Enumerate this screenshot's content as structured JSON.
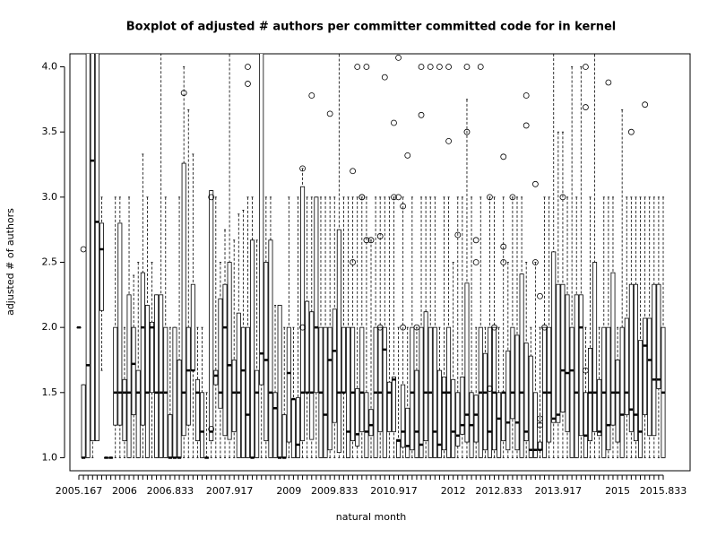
{
  "chart_data": {
    "type": "boxplot",
    "title": "Boxplot of adjusted # authors per committer committed code for in kernel",
    "xlabel": "natural month",
    "ylabel": "adjusted # of authors",
    "ylim": [
      0.9,
      4.1
    ],
    "yticks": [
      {
        "value": 1,
        "label": "1.0"
      },
      {
        "value": 1.5,
        "label": "1.5"
      },
      {
        "value": 2,
        "label": "2.0"
      },
      {
        "value": 2.5,
        "label": "2.5"
      },
      {
        "value": 3,
        "label": "3.0"
      },
      {
        "value": 3.5,
        "label": "3.5"
      },
      {
        "value": 4,
        "label": "4.0"
      }
    ],
    "color": "#000000",
    "categories": [
      "2005.167",
      null,
      null,
      null,
      null,
      null,
      null,
      null,
      null,
      null,
      "2006",
      null,
      null,
      null,
      null,
      null,
      null,
      null,
      null,
      null,
      "2006.833",
      null,
      null,
      null,
      null,
      null,
      null,
      null,
      null,
      null,
      null,
      null,
      null,
      "2007.917",
      null,
      null,
      null,
      null,
      null,
      null,
      null,
      null,
      null,
      null,
      null,
      null,
      "2009",
      null,
      null,
      null,
      null,
      null,
      null,
      null,
      null,
      null,
      "2009.833",
      null,
      null,
      null,
      null,
      null,
      null,
      null,
      null,
      null,
      null,
      null,
      null,
      "2010.917",
      null,
      null,
      null,
      null,
      null,
      null,
      null,
      null,
      null,
      null,
      null,
      null,
      "2012",
      null,
      null,
      null,
      null,
      null,
      null,
      null,
      null,
      null,
      "2012.833",
      null,
      null,
      null,
      null,
      null,
      null,
      null,
      null,
      null,
      null,
      null,
      null,
      "2013.917",
      null,
      null,
      null,
      null,
      null,
      null,
      null,
      null,
      null,
      null,
      null,
      null,
      "2015",
      null,
      null,
      null,
      null,
      null,
      null,
      null,
      null,
      null,
      "2015.833"
    ],
    "boxes": [
      [
        2,
        2,
        2,
        2,
        2
      ],
      [
        1,
        1,
        1,
        1.56,
        1.56
      ],
      [
        1,
        1,
        1.71,
        4.5,
        5
      ],
      [
        1,
        1.13,
        3.28,
        5,
        6
      ],
      [
        1.13,
        1.13,
        2.81,
        5,
        6
      ],
      [
        1.67,
        2.13,
        2.6,
        2.8,
        3
      ],
      [
        1,
        1,
        1,
        1,
        1
      ],
      [
        1,
        1,
        1,
        1,
        1
      ],
      [
        1,
        1.25,
        1.5,
        2,
        3
      ],
      [
        1,
        1.25,
        1.5,
        2.8,
        3
      ],
      [
        1,
        1.13,
        1.5,
        1.6,
        2
      ],
      [
        1,
        1,
        1.5,
        2.25,
        3
      ],
      [
        1,
        1.33,
        1.72,
        2,
        2.4
      ],
      [
        1,
        1,
        1.5,
        1.67,
        2.5
      ],
      [
        1,
        1.25,
        2,
        2.42,
        3.33
      ],
      [
        1,
        1,
        1.5,
        2.17,
        3
      ],
      [
        1,
        1.5,
        2,
        2.04,
        2.5
      ],
      [
        1,
        1,
        1.5,
        2.25,
        2.25
      ],
      [
        1,
        1,
        1.5,
        2.25,
        5
      ],
      [
        1,
        1,
        1.5,
        2,
        3
      ],
      [
        1,
        1,
        1,
        1.33,
        2
      ],
      [
        1,
        1,
        1,
        2,
        2
      ],
      [
        1,
        1,
        1,
        1.75,
        3
      ],
      [
        1,
        1.17,
        1.5,
        3.26,
        4
      ],
      [
        1,
        1.25,
        1.67,
        2,
        3.67
      ],
      [
        1,
        1.67,
        1.67,
        2.33,
        3.33
      ],
      [
        1,
        1.13,
        1.5,
        1.6,
        2
      ],
      [
        1,
        1,
        1.2,
        1.5,
        2
      ],
      [
        1,
        1,
        1,
        1,
        1.5
      ],
      [
        1,
        1.13,
        1.2,
        3.05,
        3.05
      ],
      [
        1,
        1.56,
        1.63,
        1.67,
        3
      ],
      [
        1,
        1.38,
        1.5,
        2.22,
        2.5
      ],
      [
        1,
        1.17,
        2,
        2.33,
        2.75
      ],
      [
        1,
        1.14,
        1.71,
        2.5,
        4.2
      ],
      [
        1,
        1.2,
        1.5,
        1.75,
        2.67
      ],
      [
        1,
        1,
        1.5,
        2.11,
        2.87
      ],
      [
        1,
        1,
        1.67,
        2,
        2.9
      ],
      [
        1,
        1,
        1.33,
        2,
        3
      ],
      [
        1,
        1,
        1,
        2.67,
        3
      ],
      [
        1,
        1,
        1.5,
        1.67,
        2.67
      ],
      [
        1,
        1.56,
        1.8,
        5,
        5
      ],
      [
        1,
        1.13,
        1.75,
        2.5,
        3
      ],
      [
        1,
        1,
        1.5,
        2.67,
        3
      ],
      [
        1,
        1,
        1.38,
        1.5,
        2.17
      ],
      [
        1,
        1,
        1,
        2.17,
        2.17
      ],
      [
        1,
        1,
        1,
        1.33,
        2
      ],
      [
        1,
        1.12,
        1.65,
        2,
        3
      ],
      [
        1,
        1,
        1.45,
        1.45,
        2
      ],
      [
        1,
        1,
        1.1,
        1.46,
        3
      ],
      [
        1,
        1.13,
        1.5,
        3.08,
        3.22
      ],
      [
        1,
        1.5,
        1.5,
        2.2,
        3
      ],
      [
        1,
        1.14,
        1.5,
        2.12,
        3
      ],
      [
        1,
        1.5,
        2,
        3,
        3
      ],
      [
        1,
        1,
        1.5,
        2,
        3
      ],
      [
        1,
        1,
        1.33,
        2,
        3
      ],
      [
        1,
        1.06,
        1.75,
        2,
        3
      ],
      [
        1,
        1.27,
        1.82,
        2.14,
        3
      ],
      [
        1,
        1.04,
        1.5,
        2.75,
        4.2
      ],
      [
        1,
        1.5,
        1.5,
        2,
        3
      ],
      [
        1,
        1,
        1.2,
        2,
        3
      ],
      [
        1,
        1.13,
        1.5,
        2,
        3
      ],
      [
        1,
        1.09,
        1.18,
        1.53,
        3
      ],
      [
        1,
        1.2,
        1.5,
        2,
        3
      ],
      [
        1,
        1,
        1.2,
        1.5,
        3
      ],
      [
        1,
        1.17,
        1.25,
        1.37,
        2.67
      ],
      [
        1,
        1,
        1.5,
        2,
        3
      ],
      [
        1,
        1.2,
        1.5,
        2,
        3
      ],
      [
        1,
        1,
        1.83,
        2,
        3
      ],
      [
        1,
        1.2,
        1.5,
        1.58,
        3
      ],
      [
        1,
        1.2,
        1.6,
        1.62,
        3
      ],
      [
        1,
        1,
        1.13,
        1.14,
        2
      ],
      [
        1,
        1.08,
        1.2,
        1.56,
        3
      ],
      [
        1,
        1,
        1.09,
        1.38,
        2
      ],
      [
        1,
        1.06,
        1.5,
        2,
        3
      ],
      [
        1,
        1,
        1.2,
        1.67,
        2
      ],
      [
        1,
        1,
        1.1,
        2,
        3
      ],
      [
        1,
        1.13,
        1.5,
        2.12,
        3
      ],
      [
        1,
        1,
        1.5,
        2,
        3
      ],
      [
        1,
        1,
        1.2,
        2,
        3
      ],
      [
        1,
        1,
        1.1,
        1.67,
        2
      ],
      [
        1,
        1.06,
        1.5,
        1.62,
        3
      ],
      [
        1,
        1,
        1.5,
        2,
        3
      ],
      [
        1,
        1,
        1.2,
        1.6,
        2.5
      ],
      [
        1,
        1.09,
        1.17,
        1.5,
        3
      ],
      [
        1,
        1.18,
        1.25,
        1.62,
        3
      ],
      [
        1,
        1.12,
        1.33,
        2.34,
        3.75
      ],
      [
        1,
        1,
        1.25,
        1.5,
        3
      ],
      [
        1,
        1.12,
        1.33,
        1.48,
        2
      ],
      [
        1,
        1,
        1.5,
        2,
        3
      ],
      [
        1,
        1.06,
        1.5,
        1.8,
        2
      ],
      [
        1,
        1,
        1.2,
        2,
        3
      ],
      [
        1,
        1.06,
        1.5,
        2,
        3
      ],
      [
        1,
        1,
        1.3,
        1.5,
        2
      ],
      [
        1,
        1.13,
        1.5,
        1.5,
        3
      ],
      [
        1,
        1.06,
        1.27,
        1.82,
        2.5
      ],
      [
        1,
        1.3,
        1.5,
        2,
        3
      ],
      [
        1,
        1.06,
        1.27,
        1.94,
        3
      ],
      [
        1,
        1,
        1.5,
        2.41,
        3
      ],
      [
        1,
        1.13,
        1.2,
        1.88,
        2.5
      ],
      [
        1,
        1,
        1.06,
        1.78,
        2
      ],
      [
        1,
        1,
        1.06,
        1.5,
        2.5
      ],
      [
        1,
        1.06,
        1.06,
        1.12,
        2
      ],
      [
        1,
        1,
        1.5,
        2,
        3
      ],
      [
        1,
        1.12,
        1.5,
        2,
        3
      ],
      [
        1,
        1.27,
        1.3,
        2.58,
        4.1
      ],
      [
        1,
        1.27,
        1.33,
        2.33,
        3.5
      ],
      [
        1,
        1.35,
        1.67,
        2.33,
        3.5
      ],
      [
        1,
        1.2,
        1.65,
        2.25,
        3
      ],
      [
        1,
        1,
        1.67,
        2,
        4
      ],
      [
        1,
        1,
        1.5,
        2.25,
        3
      ],
      [
        1,
        1.17,
        2,
        2.25,
        4
      ],
      [
        1,
        1,
        1.17,
        1.5,
        2
      ],
      [
        1,
        1.13,
        1.5,
        1.84,
        3
      ],
      [
        1,
        1.2,
        1.5,
        2.5,
        4.2
      ],
      [
        1,
        1.17,
        1.2,
        1.6,
        2
      ],
      [
        1,
        1,
        1.5,
        2,
        3
      ],
      [
        1,
        1.06,
        1.25,
        2,
        3
      ],
      [
        1,
        1.25,
        1.5,
        2.42,
        3
      ],
      [
        1,
        1.12,
        1.5,
        1.75,
        2
      ],
      [
        1,
        1,
        1.33,
        2,
        3.67
      ],
      [
        1,
        1.33,
        1.5,
        2.07,
        3
      ],
      [
        1,
        1.2,
        1.37,
        2.33,
        3
      ],
      [
        1,
        1.13,
        1.33,
        2.33,
        3
      ],
      [
        1,
        1,
        1.2,
        1.9,
        3
      ],
      [
        1,
        1.33,
        1.86,
        2.07,
        3
      ],
      [
        1,
        1.17,
        1.75,
        2.07,
        3
      ],
      [
        1,
        1.17,
        1.6,
        2.33,
        3
      ],
      [
        1,
        1.53,
        1.6,
        2.33,
        3
      ],
      [
        1,
        1,
        1.5,
        2,
        3
      ]
    ],
    "outliers": {
      "box": [
        1,
        23,
        29,
        29,
        37,
        37,
        49,
        49,
        51,
        55,
        60,
        60,
        61,
        62,
        62,
        63,
        63,
        64,
        66,
        66,
        67,
        69,
        69,
        70,
        70,
        71,
        71,
        72,
        74,
        75,
        75,
        77,
        79,
        81,
        81,
        83,
        85,
        85,
        87,
        87,
        88,
        90,
        90,
        91,
        93,
        93,
        93,
        95,
        98,
        98,
        100,
        100,
        101,
        101,
        101,
        102,
        106,
        111,
        111,
        111,
        116,
        121,
        124
      ],
      "values": [
        2.6,
        3.8,
        3,
        1.22,
        4,
        3.87,
        3.22,
        2,
        3.78,
        3.64,
        2.5,
        3.2,
        4,
        3,
        3,
        4,
        2.67,
        2.67,
        2.7,
        2,
        3.92,
        3,
        3.57,
        4.07,
        3,
        2,
        2.93,
        3.32,
        2,
        3.63,
        4,
        4,
        4,
        3.43,
        4,
        2.71,
        3.5,
        4,
        2.67,
        2.5,
        4,
        3,
        1.53,
        2,
        3.31,
        2.5,
        2.62,
        3,
        3.78,
        3.55,
        2.5,
        3.1,
        2.24,
        1.3,
        1.25,
        2,
        3,
        4,
        3.69,
        1.67,
        3.88,
        3.5,
        3.71
      ]
    }
  }
}
